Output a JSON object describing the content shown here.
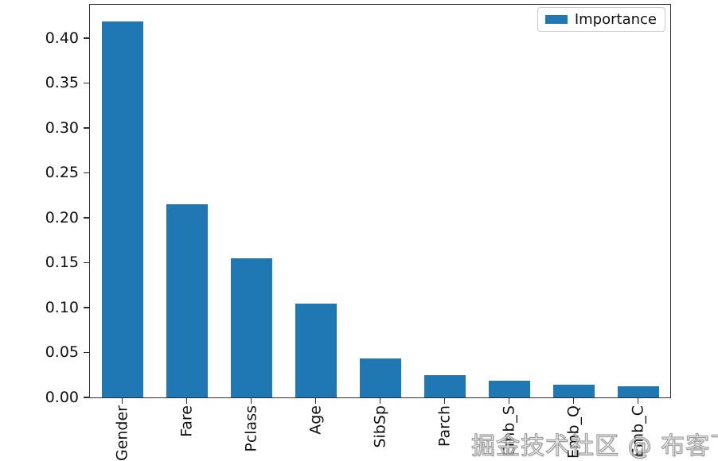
{
  "chart_data": {
    "type": "bar",
    "title": "",
    "xlabel": "",
    "ylabel": "",
    "categories": [
      "Gender",
      "Fare",
      "Pclass",
      "Age",
      "SibSp",
      "Parch",
      "Emb_S",
      "Emb_Q",
      "Emb_C"
    ],
    "values": [
      0.418,
      0.215,
      0.155,
      0.104,
      0.043,
      0.025,
      0.019,
      0.014,
      0.012
    ],
    "series_name": "Importance",
    "ylim": [
      0,
      0.437
    ],
    "yticks": [
      0.0,
      0.05,
      0.1,
      0.15,
      0.2,
      0.25,
      0.3,
      0.35,
      0.4
    ],
    "ytick_labels": [
      "0.00",
      "0.05",
      "0.10",
      "0.15",
      "0.20",
      "0.25",
      "0.30",
      "0.35",
      "0.40"
    ],
    "grid": false,
    "legend": {
      "position": "top-right",
      "entries": [
        {
          "label": "Importance",
          "color": "#1f77b4"
        }
      ]
    },
    "bar_color": "#1f77b4",
    "xtick_rotation": 90
  },
  "colors": {
    "bar": "#1f77b4",
    "spine": "#2e2e2e",
    "background": "#ffffff",
    "tick_text": "#111111"
  },
  "watermark": {
    "text": "掘金技术社区 @ 布客飞龙"
  }
}
